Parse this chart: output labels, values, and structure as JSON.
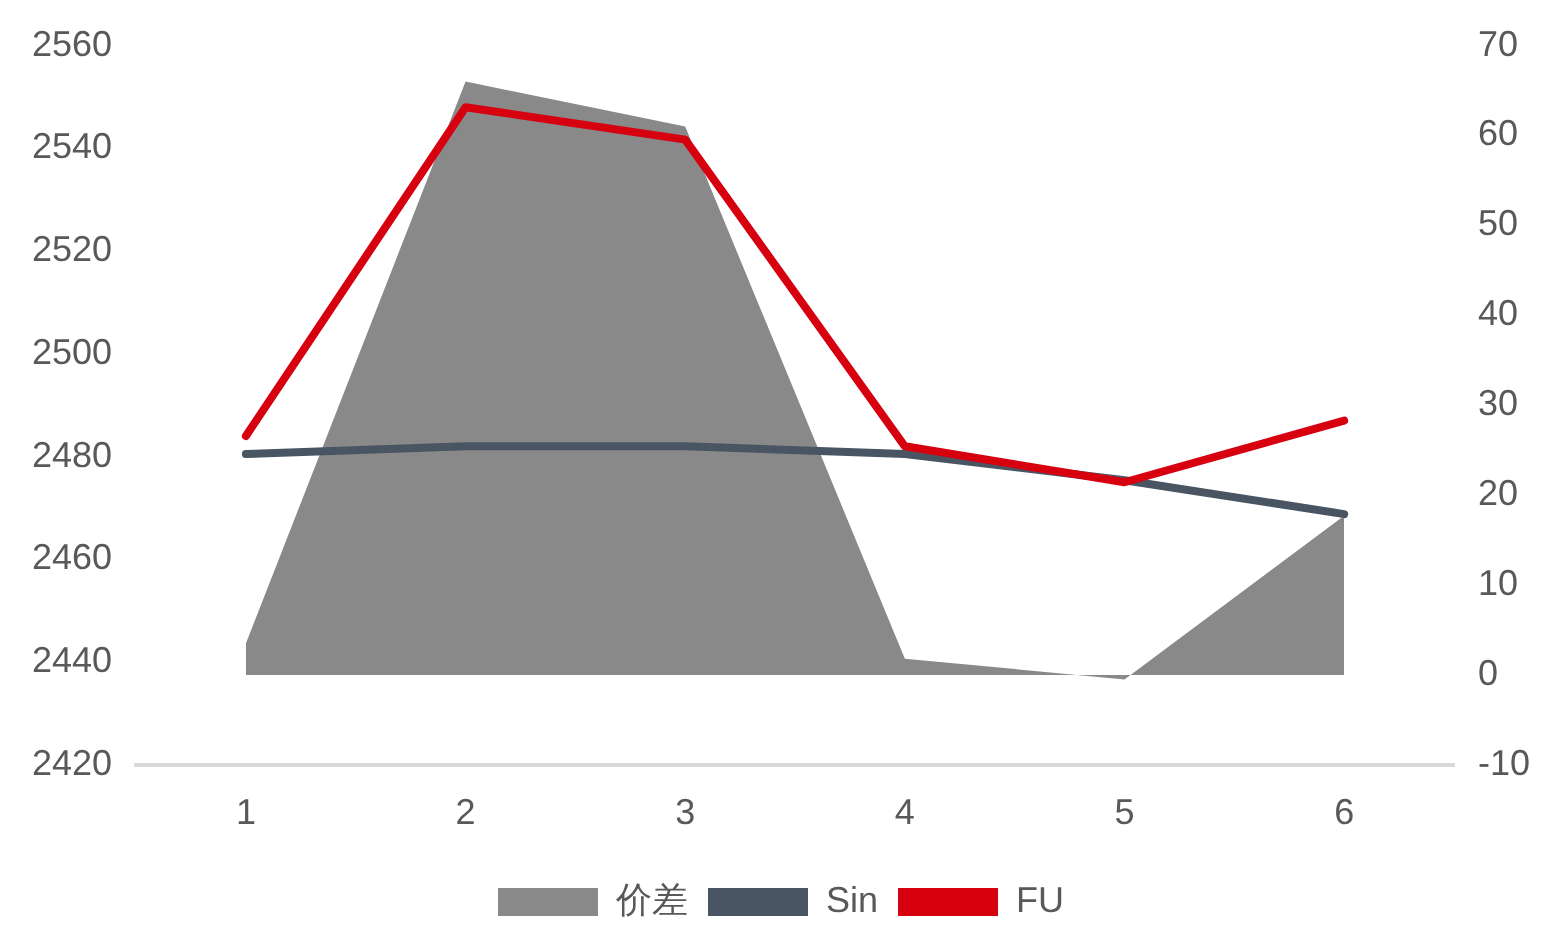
{
  "chart_data": {
    "type": "line",
    "categories": [
      "1",
      "2",
      "3",
      "4",
      "5",
      "6"
    ],
    "series": [
      {
        "name": "价差",
        "type": "area",
        "axis": "y2",
        "color": "#898989",
        "values": [
          3.5,
          66,
          61,
          1.8,
          -0.5,
          17.7
        ]
      },
      {
        "name": "Sin",
        "color": "#4a5563",
        "values": [
          2480.5,
          2482,
          2482,
          2480.5,
          2475.4,
          2468.8
        ]
      },
      {
        "name": "FU",
        "color": "#d7000f",
        "values": [
          2484,
          2548,
          2541.7,
          2482,
          2475,
          2487
        ]
      }
    ],
    "ylim": [
      2420,
      2560
    ],
    "yticks": [
      2420,
      2440,
      2460,
      2480,
      2500,
      2520,
      2540,
      2560
    ],
    "y2lim": [
      -10,
      70
    ],
    "y2ticks": [
      -10,
      0,
      10,
      20,
      30,
      40,
      50,
      60,
      70
    ],
    "grid": false,
    "legend": "bottom",
    "marker": "none",
    "line_style": "solid"
  }
}
